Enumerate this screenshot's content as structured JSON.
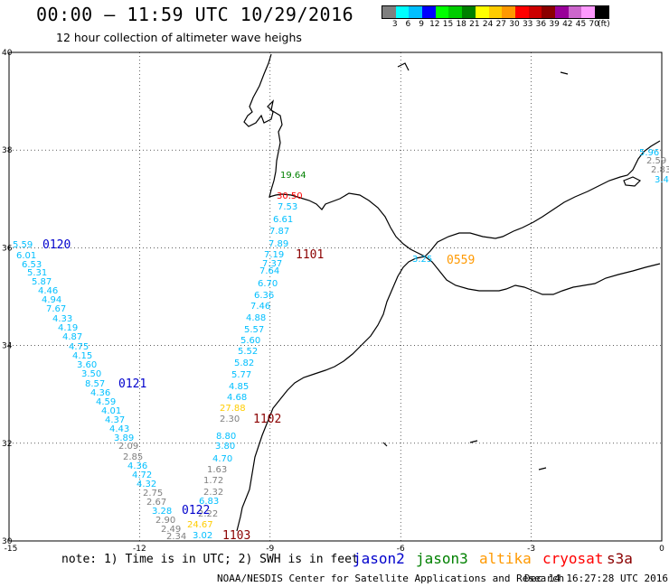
{
  "header": {
    "title": "00:00 – 11:59 UTC 10/29/2016",
    "subtitle": "12 hour collection of altimeter wave heighs"
  },
  "legend": {
    "colors": [
      "#7f7f7f",
      "#00ffff",
      "#00bfff",
      "#0000ff",
      "#00ff00",
      "#00cc00",
      "#008000",
      "#ffff00",
      "#ffcc00",
      "#ff9900",
      "#ff0000",
      "#cc0000",
      "#8b0000",
      "#990099",
      "#cc66cc",
      "#ff99ff",
      "#000000"
    ],
    "labels": [
      "3",
      "6",
      "9",
      "12",
      "15",
      "18",
      "21",
      "24",
      "27",
      "30",
      "33",
      "36",
      "39",
      "42",
      "45",
      "70",
      "(ft)"
    ]
  },
  "map": {
    "lon_range": [
      -15,
      0
    ],
    "lat_range": [
      30,
      40
    ],
    "x_ticks": [
      "-15",
      "-12",
      "-9",
      "-6",
      "-3",
      "0"
    ],
    "y_ticks": [
      "40",
      "38",
      "36",
      "34",
      "32",
      "30"
    ],
    "grid": "dotted",
    "coast_color": "#000000"
  },
  "observations": [
    {
      "text": "5.59",
      "color": "#00bfff"
    },
    {
      "text": "6.01",
      "color": "#00bfff"
    },
    {
      "text": "6.53",
      "color": "#00bfff"
    },
    {
      "text": "5.31",
      "color": "#00bfff"
    },
    {
      "text": "5.87",
      "color": "#00bfff"
    },
    {
      "text": "4.46",
      "color": "#00bfff"
    },
    {
      "text": "4.94",
      "color": "#00bfff"
    },
    {
      "text": "7.67",
      "color": "#00bfff"
    },
    {
      "text": "4.33",
      "color": "#00bfff"
    },
    {
      "text": "4.19",
      "color": "#00bfff"
    },
    {
      "text": "4.87",
      "color": "#00bfff"
    },
    {
      "text": "4.75",
      "color": "#00bfff"
    },
    {
      "text": "4.15",
      "color": "#00bfff"
    },
    {
      "text": "3.60",
      "color": "#00bfff"
    },
    {
      "text": "3.50",
      "color": "#00bfff"
    },
    {
      "text": "8.57",
      "color": "#00bfff"
    },
    {
      "text": "4.36",
      "color": "#00bfff"
    },
    {
      "text": "4.59",
      "color": "#00bfff"
    },
    {
      "text": "4.01",
      "color": "#00bfff"
    },
    {
      "text": "4.37",
      "color": "#00bfff"
    },
    {
      "text": "4.43",
      "color": "#00bfff"
    },
    {
      "text": "3.89",
      "color": "#00bfff"
    },
    {
      "text": "2.09",
      "color": "#7f7f7f"
    },
    {
      "text": "2.85",
      "color": "#7f7f7f"
    },
    {
      "text": "4.36",
      "color": "#00bfff"
    },
    {
      "text": "4.72",
      "color": "#00bfff"
    },
    {
      "text": "4.32",
      "color": "#00bfff"
    },
    {
      "text": "2.75",
      "color": "#7f7f7f"
    },
    {
      "text": "2.67",
      "color": "#7f7f7f"
    },
    {
      "text": "3.28",
      "color": "#00bfff"
    },
    {
      "text": "2.90",
      "color": "#7f7f7f"
    },
    {
      "text": "2.49",
      "color": "#7f7f7f"
    },
    {
      "text": "2.34",
      "color": "#7f7f7f"
    },
    {
      "text": "19.64",
      "color": "#008000"
    },
    {
      "text": "30.50",
      "color": "#ff0000"
    },
    {
      "text": "7.53",
      "color": "#00bfff"
    },
    {
      "text": "6.61",
      "color": "#00bfff"
    },
    {
      "text": "7.87",
      "color": "#00bfff"
    },
    {
      "text": "7.89",
      "color": "#00bfff"
    },
    {
      "text": "7.19",
      "color": "#00bfff"
    },
    {
      "text": "7.37",
      "color": "#00bfff"
    },
    {
      "text": "7.64",
      "color": "#00bfff"
    },
    {
      "text": "6.70",
      "color": "#00bfff"
    },
    {
      "text": "6.36",
      "color": "#00bfff"
    },
    {
      "text": "7.46",
      "color": "#00bfff"
    },
    {
      "text": "4.88",
      "color": "#00bfff"
    },
    {
      "text": "5.57",
      "color": "#00bfff"
    },
    {
      "text": "5.60",
      "color": "#00bfff"
    },
    {
      "text": "5.52",
      "color": "#00bfff"
    },
    {
      "text": "5.82",
      "color": "#00bfff"
    },
    {
      "text": "5.77",
      "color": "#00bfff"
    },
    {
      "text": "4.85",
      "color": "#00bfff"
    },
    {
      "text": "4.68",
      "color": "#00bfff"
    },
    {
      "text": "27.88",
      "color": "#ffcc00"
    },
    {
      "text": "2.30",
      "color": "#7f7f7f"
    },
    {
      "text": "8.80",
      "color": "#00bfff"
    },
    {
      "text": "3.80",
      "color": "#00bfff"
    },
    {
      "text": "4.70",
      "color": "#00bfff"
    },
    {
      "text": "1.63",
      "color": "#7f7f7f"
    },
    {
      "text": "1.72",
      "color": "#7f7f7f"
    },
    {
      "text": "2.32",
      "color": "#7f7f7f"
    },
    {
      "text": "6.83",
      "color": "#00bfff"
    },
    {
      "text": "2.22",
      "color": "#7f7f7f"
    },
    {
      "text": "24.67",
      "color": "#ffcc00"
    },
    {
      "text": "3.02",
      "color": "#00bfff"
    },
    {
      "text": "3.25",
      "color": "#00bfff"
    },
    {
      "text": "5.96",
      "color": "#00bfff"
    },
    {
      "text": "2.59",
      "color": "#7f7f7f"
    },
    {
      "text": "2.83",
      "color": "#7f7f7f"
    },
    {
      "text": "3.4",
      "color": "#00bfff"
    }
  ],
  "pass_labels": [
    {
      "text": "0120",
      "color": "#0000cc"
    },
    {
      "text": "0121",
      "color": "#0000cc"
    },
    {
      "text": "0122",
      "color": "#0000cc"
    },
    {
      "text": "1101",
      "color": "#8b0000"
    },
    {
      "text": "1102",
      "color": "#8b0000"
    },
    {
      "text": "1103",
      "color": "#8b0000"
    },
    {
      "text": "0559",
      "color": "#ff9900"
    }
  ],
  "footer": {
    "note": "note: 1) Time is in UTC; 2) SWH is in feet",
    "satellites": [
      {
        "name": "jason2",
        "color": "#0000cc"
      },
      {
        "name": "jason3",
        "color": "#008000"
      },
      {
        "name": "altika",
        "color": "#ff9900"
      },
      {
        "name": "cryosat",
        "color": "#ff0000"
      },
      {
        "name": "s3a",
        "color": "#8b0000"
      }
    ],
    "credit": "NOAA/NESDIS Center for Satellite Applications and Research",
    "timestamp": "Dec 14 16:27:28 UTC 2016"
  }
}
